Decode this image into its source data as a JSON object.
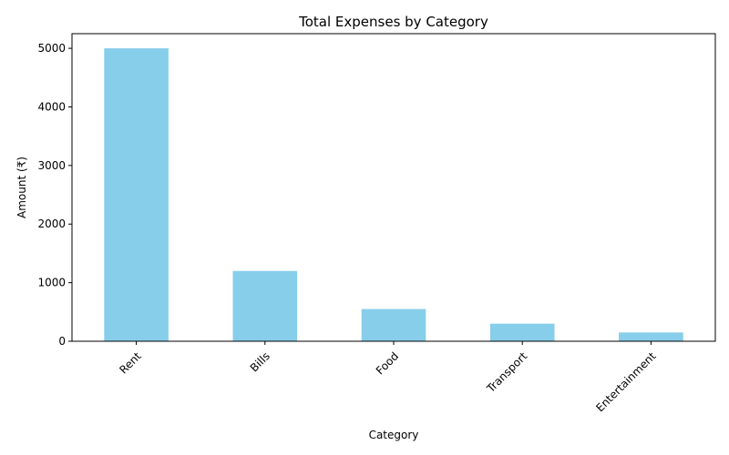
{
  "chart_data": {
    "type": "bar",
    "title": "Total Expenses by Category",
    "xlabel": "Category",
    "ylabel": "Amount (₹)",
    "categories": [
      "Rent",
      "Bills",
      "Food",
      "Transport",
      "Entertainment"
    ],
    "values": [
      5000,
      1200,
      550,
      300,
      150
    ],
    "ylim": [
      0,
      5250
    ],
    "yticks": [
      0,
      1000,
      2000,
      3000,
      4000,
      5000
    ],
    "bar_color": "#87CEEB",
    "grid": false,
    "legend": "none"
  }
}
